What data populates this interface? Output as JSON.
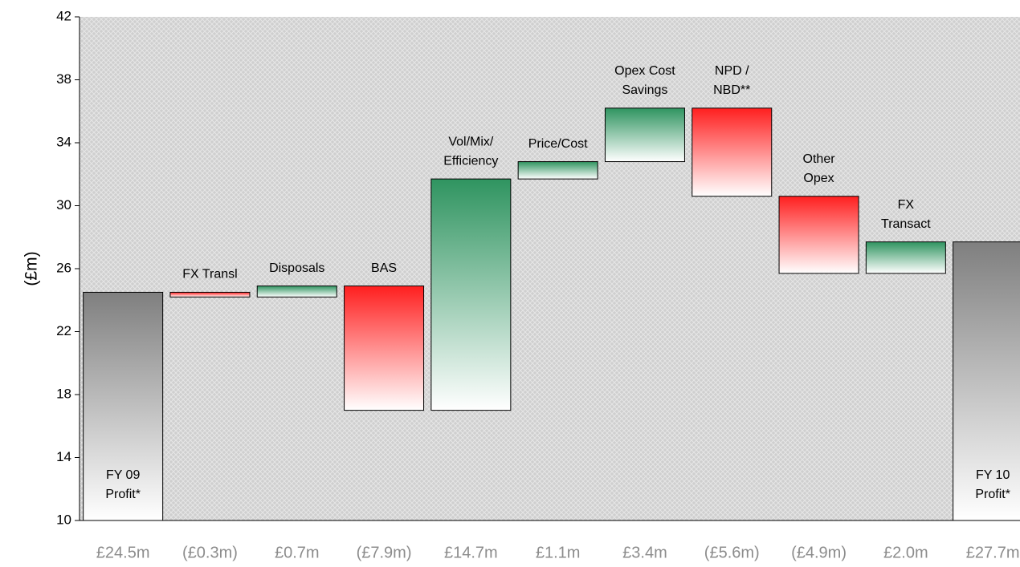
{
  "chart_data": {
    "type": "waterfall",
    "y_label": "(£m)",
    "categories": [
      [
        "FY 09",
        "Profit*"
      ],
      [
        "FX Transl"
      ],
      [
        "Disposals"
      ],
      [
        "BAS"
      ],
      [
        "Vol/Mix/",
        "Efficiency"
      ],
      [
        "Price/Cost"
      ],
      [
        "Opex Cost",
        "Savings"
      ],
      [
        "NPD /",
        "NBD**"
      ],
      [
        "Other",
        "Opex"
      ],
      [
        "FX",
        "Transact"
      ],
      [
        "FY 10",
        "Profit*"
      ]
    ],
    "values": [
      24.5,
      -0.3,
      0.7,
      -7.9,
      14.7,
      1.1,
      3.4,
      -5.6,
      -4.9,
      2.0,
      27.7
    ],
    "value_labels": [
      "£24.5m",
      "(£0.3m)",
      "£0.7m",
      "(£7.9m)",
      "£14.7m",
      "£1.1m",
      "£3.4m",
      "(£5.6m)",
      "(£4.9m)",
      "£2.0m",
      "£27.7m"
    ],
    "is_total": [
      true,
      false,
      false,
      false,
      false,
      false,
      false,
      false,
      false,
      false,
      true
    ],
    "colors": {
      "increase": "#2f9460",
      "decrease": "#ff1f1f",
      "total": "#7f7f7f"
    },
    "ylim": [
      10,
      42
    ],
    "yticks": [
      10,
      14,
      18,
      22,
      26,
      30,
      34,
      38,
      42
    ]
  }
}
